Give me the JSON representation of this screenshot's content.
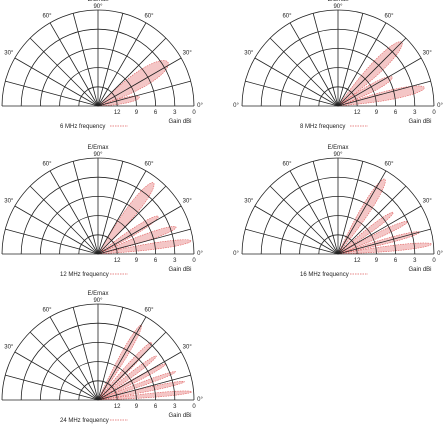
{
  "labels": {
    "top_title": "E/Emax",
    "top_angle": "90°",
    "angle_60": "60°",
    "angle_30": "30°",
    "angle_0": "0°",
    "gain_ticks": [
      "12",
      "9",
      "6",
      "3",
      "0"
    ],
    "gain_axis": "Gain dBi"
  },
  "charts": [
    {
      "legend": "6 MHz frequency",
      "lobes": [
        {
          "center": 12,
          "width": 18,
          "reach": 0.44
        },
        {
          "center": 32,
          "width": 26,
          "reach": 0.86
        }
      ]
    },
    {
      "legend": "8 MHz frequency",
      "lobes": [
        {
          "center": 12,
          "width": 14,
          "reach": 0.92
        },
        {
          "center": 28,
          "width": 16,
          "reach": 0.64
        },
        {
          "center": 45,
          "width": 18,
          "reach": 0.94
        }
      ]
    },
    {
      "legend": "12 MHz frequency",
      "lobes": [
        {
          "center": 8,
          "width": 9,
          "reach": 0.98
        },
        {
          "center": 19,
          "width": 11,
          "reach": 0.86
        },
        {
          "center": 32,
          "width": 12,
          "reach": 0.74
        },
        {
          "center": 52,
          "width": 16,
          "reach": 0.94
        }
      ]
    },
    {
      "legend": "16 MHz frequency",
      "lobes": [
        {
          "center": 6,
          "width": 8,
          "reach": 0.98
        },
        {
          "center": 15,
          "width": 8,
          "reach": 0.88
        },
        {
          "center": 25,
          "width": 9,
          "reach": 0.8
        },
        {
          "center": 37,
          "width": 10,
          "reach": 0.72
        },
        {
          "center": 58,
          "width": 14,
          "reach": 0.92
        }
      ]
    },
    {
      "legend": "24 MHz frequency",
      "lobes": [
        {
          "center": 5,
          "width": 6,
          "reach": 0.98
        },
        {
          "center": 12,
          "width": 6,
          "reach": 0.92
        },
        {
          "center": 20,
          "width": 6,
          "reach": 0.86
        },
        {
          "center": 28,
          "width": 7,
          "reach": 0.8
        },
        {
          "center": 37,
          "width": 8,
          "reach": 0.76
        },
        {
          "center": 47,
          "width": 9,
          "reach": 0.82
        },
        {
          "center": 60,
          "width": 10,
          "reach": 0.9
        }
      ]
    }
  ]
}
